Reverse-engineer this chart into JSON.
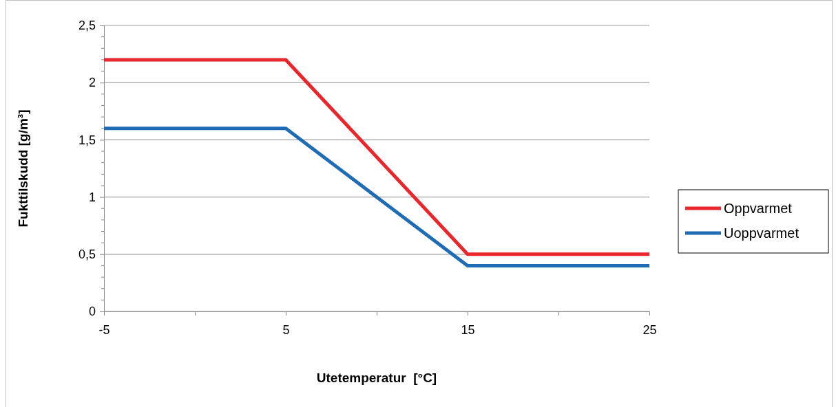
{
  "chart_data": {
    "type": "line",
    "xlabel": "Utetemperatur  [°C]",
    "ylabel": "Fukttilskudd [g/m³]",
    "x": [
      -5,
      5,
      15,
      25
    ],
    "series": [
      {
        "name": "Oppvarmet",
        "color": "#e8262c",
        "values": [
          2.2,
          2.2,
          0.5,
          0.5
        ]
      },
      {
        "name": "Uoppvarmet",
        "color": "#1f6cb4",
        "values": [
          1.6,
          1.6,
          0.4,
          0.4
        ]
      }
    ],
    "xlim": [
      -5,
      25
    ],
    "xticks": [
      -5,
      {
        "value": 0,
        "label": null
      },
      5,
      {
        "value": 10,
        "label": null
      },
      15,
      {
        "value": 20,
        "label": null
      },
      25
    ],
    "ylim": [
      0,
      2.5
    ],
    "yticks": [
      {
        "value": 0,
        "label": "0"
      },
      {
        "value": 0.5,
        "label": "0,5"
      },
      {
        "value": 1,
        "label": "1"
      },
      {
        "value": 1.5,
        "label": "1,5"
      },
      {
        "value": 2,
        "label": "2"
      },
      {
        "value": 2.5,
        "label": "2,5"
      }
    ],
    "grid": "y",
    "legend": "right",
    "marker": "none",
    "line_style": "solid"
  }
}
